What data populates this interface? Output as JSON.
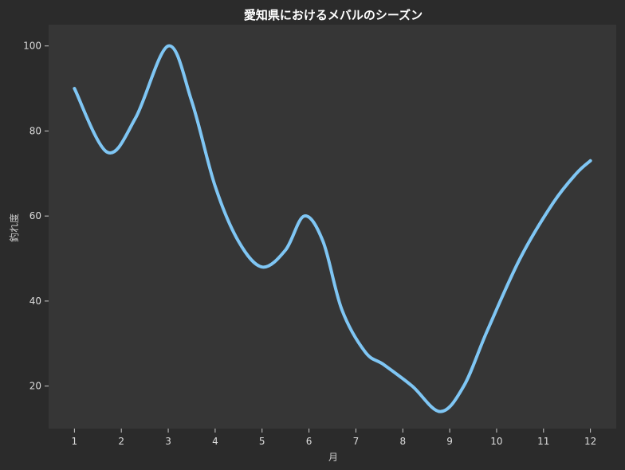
{
  "chart_data": {
    "type": "line",
    "title": "愛知県におけるメバルのシーズン",
    "xlabel": "月",
    "ylabel": "釣れ度",
    "x": [
      1,
      1.7,
      2.3,
      3,
      3.5,
      4,
      4.5,
      5,
      5.5,
      5.9,
      6.3,
      6.7,
      7.2,
      7.6,
      8.2,
      8.8,
      9.3,
      9.8,
      10.5,
      11.2,
      11.7,
      12
    ],
    "series": [
      {
        "values": [
          90,
          75,
          83,
          100,
          87,
          67,
          54,
          48,
          52,
          60,
          54,
          38,
          28,
          25,
          20,
          14,
          20,
          33,
          50,
          63,
          70,
          73
        ]
      }
    ],
    "xticks": [
      "1",
      "2",
      "3",
      "4",
      "5",
      "6",
      "7",
      "8",
      "9",
      "10",
      "11",
      "12"
    ],
    "yticks": [
      "20",
      "40",
      "60",
      "80",
      "100"
    ],
    "xlim": [
      0.45,
      12.55
    ],
    "ylim": [
      10,
      105
    ],
    "grid": false,
    "colors": {
      "background": "#2b2b2b",
      "plot_area": "#363636",
      "line": "#7fc6f4"
    }
  }
}
